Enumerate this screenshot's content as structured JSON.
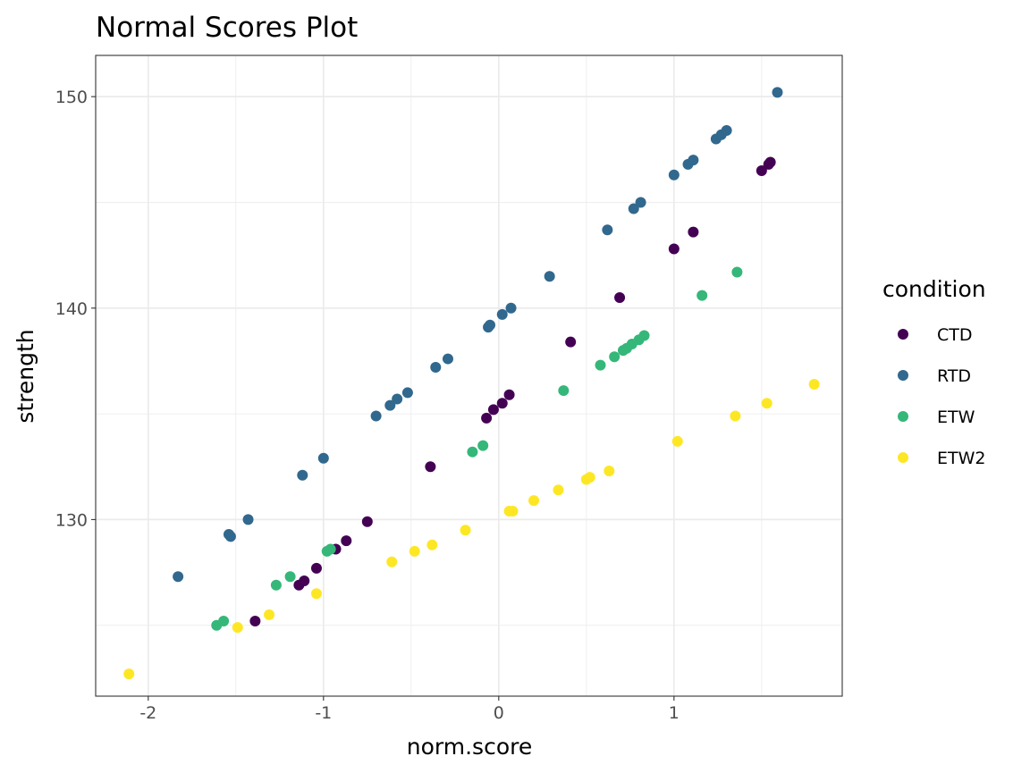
{
  "chart_data": {
    "type": "scatter",
    "title": "Normal Scores Plot",
    "xlabel": "norm.score",
    "ylabel": "strength",
    "xlim": [
      -2.3,
      1.96
    ],
    "ylim": [
      121.65,
      151.95
    ],
    "x_ticks": [
      -2,
      -1,
      0,
      1
    ],
    "x_tick_labels": [
      "-2",
      "-1",
      "0",
      "1"
    ],
    "y_ticks": [
      130,
      140,
      150
    ],
    "y_tick_labels": [
      "130",
      "140",
      "150"
    ],
    "grid": true,
    "legend": {
      "title": "condition",
      "placement": "right"
    },
    "series": [
      {
        "name": "CTD",
        "color": "#440154",
        "points": [
          [
            -1.39,
            125.2
          ],
          [
            -1.14,
            126.9
          ],
          [
            -1.11,
            127.1
          ],
          [
            -1.04,
            127.7
          ],
          [
            -0.93,
            128.6
          ],
          [
            -0.87,
            129.0
          ],
          [
            -0.75,
            129.9
          ],
          [
            -0.39,
            132.5
          ],
          [
            -0.07,
            134.8
          ],
          [
            -0.03,
            135.2
          ],
          [
            0.02,
            135.5
          ],
          [
            0.06,
            135.9
          ],
          [
            0.41,
            138.4
          ],
          [
            0.69,
            140.5
          ],
          [
            1.0,
            142.8
          ],
          [
            1.11,
            143.6
          ],
          [
            1.5,
            146.5
          ],
          [
            1.54,
            146.8
          ],
          [
            1.55,
            146.9
          ]
        ]
      },
      {
        "name": "RTD",
        "color": "#31688e",
        "points": [
          [
            -1.83,
            127.3
          ],
          [
            -1.54,
            129.3
          ],
          [
            -1.53,
            129.2
          ],
          [
            -1.43,
            130.0
          ],
          [
            -1.12,
            132.1
          ],
          [
            -1.0,
            132.9
          ],
          [
            -0.7,
            134.9
          ],
          [
            -0.62,
            135.4
          ],
          [
            -0.58,
            135.7
          ],
          [
            -0.52,
            136.0
          ],
          [
            -0.36,
            137.2
          ],
          [
            -0.29,
            137.6
          ],
          [
            -0.06,
            139.1
          ],
          [
            -0.05,
            139.2
          ],
          [
            0.02,
            139.7
          ],
          [
            0.07,
            140.0
          ],
          [
            0.29,
            141.5
          ],
          [
            0.62,
            143.7
          ],
          [
            0.77,
            144.7
          ],
          [
            0.81,
            145.0
          ],
          [
            1.0,
            146.3
          ],
          [
            1.08,
            146.8
          ],
          [
            1.11,
            147.0
          ],
          [
            1.24,
            148.0
          ],
          [
            1.27,
            148.2
          ],
          [
            1.3,
            148.4
          ],
          [
            1.59,
            150.2
          ]
        ]
      },
      {
        "name": "ETW",
        "color": "#35b779",
        "points": [
          [
            -1.61,
            125.0
          ],
          [
            -1.57,
            125.2
          ],
          [
            -1.27,
            126.9
          ],
          [
            -1.19,
            127.3
          ],
          [
            -0.98,
            128.5
          ],
          [
            -0.96,
            128.6
          ],
          [
            -0.15,
            133.2
          ],
          [
            -0.09,
            133.5
          ],
          [
            0.37,
            136.1
          ],
          [
            0.58,
            137.3
          ],
          [
            0.66,
            137.7
          ],
          [
            0.71,
            138.0
          ],
          [
            0.73,
            138.1
          ],
          [
            0.76,
            138.3
          ],
          [
            0.8,
            138.5
          ],
          [
            0.83,
            138.7
          ],
          [
            1.16,
            140.6
          ],
          [
            1.36,
            141.7
          ]
        ]
      },
      {
        "name": "ETW2",
        "color": "#fde725",
        "points": [
          [
            -2.11,
            122.7
          ],
          [
            -1.49,
            124.9
          ],
          [
            -1.31,
            125.5
          ],
          [
            -1.04,
            126.5
          ],
          [
            -0.61,
            128.0
          ],
          [
            -0.48,
            128.5
          ],
          [
            -0.38,
            128.8
          ],
          [
            -0.19,
            129.5
          ],
          [
            0.06,
            130.4
          ],
          [
            0.08,
            130.4
          ],
          [
            0.2,
            130.9
          ],
          [
            0.34,
            131.4
          ],
          [
            0.5,
            131.9
          ],
          [
            0.52,
            132.0
          ],
          [
            0.63,
            132.3
          ],
          [
            1.02,
            133.7
          ],
          [
            1.35,
            134.9
          ],
          [
            1.53,
            135.5
          ],
          [
            1.8,
            136.4
          ]
        ]
      }
    ]
  }
}
